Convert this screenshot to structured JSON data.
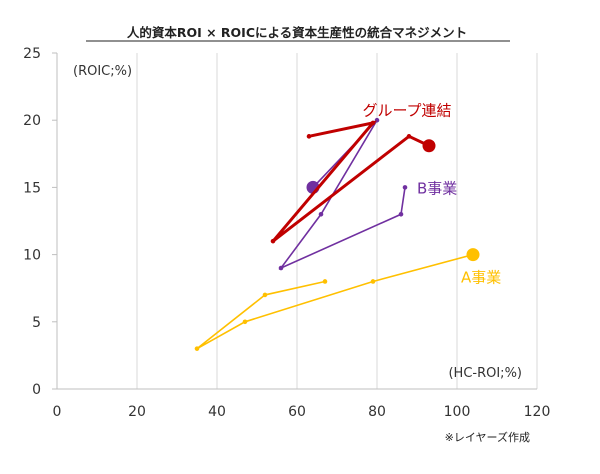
{
  "chart_data": {
    "type": "scatter",
    "title": "人的資本ROI × ROICによる資本生産性の統合マネジメント",
    "xlabel": "(HC-ROI;%)",
    "ylabel": "(ROIC;%)",
    "xlim": [
      0,
      120
    ],
    "ylim": [
      0,
      25
    ],
    "xticks": [
      "0",
      "20",
      "40",
      "60",
      "80",
      "100",
      "120"
    ],
    "yticks": [
      "0",
      "5",
      "10",
      "15",
      "20",
      "25"
    ],
    "grid": "vertical",
    "note": "※レイヤーズ作成",
    "series": [
      {
        "name": "グループ連結",
        "color": "#c00000",
        "points": [
          [
            63,
            18.8
          ],
          [
            79,
            19.8
          ],
          [
            54,
            11
          ],
          [
            88,
            18.8
          ],
          [
            93,
            18.1
          ]
        ]
      },
      {
        "name": "B事業",
        "color": "#7030a0",
        "points": [
          [
            64,
            15
          ],
          [
            80,
            20
          ],
          [
            66,
            13
          ],
          [
            56,
            9
          ],
          [
            86,
            13
          ],
          [
            87,
            15
          ]
        ]
      },
      {
        "name": "A事業",
        "color": "#ffc000",
        "points": [
          [
            67,
            8
          ],
          [
            52,
            7
          ],
          [
            35,
            3
          ],
          [
            47,
            5
          ],
          [
            79,
            8
          ],
          [
            104,
            10
          ]
        ]
      }
    ]
  }
}
